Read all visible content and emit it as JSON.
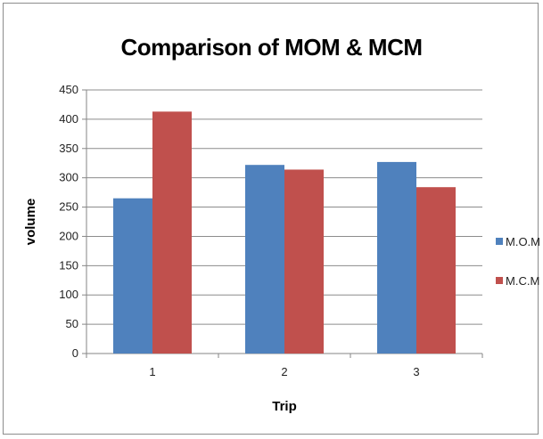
{
  "chart_data": {
    "type": "bar",
    "title": "Comparison of MOM & MCM",
    "xlabel": "Trip",
    "ylabel": "volume",
    "categories": [
      "1",
      "2",
      "3"
    ],
    "series": [
      {
        "name": "M.O.M",
        "color": "#4f81bd",
        "values": [
          265,
          322,
          327
        ]
      },
      {
        "name": "M.C.M",
        "color": "#c0504d",
        "values": [
          413,
          314,
          284
        ]
      }
    ],
    "ylim": [
      0,
      450
    ],
    "yticks": [
      0,
      50,
      100,
      150,
      200,
      250,
      300,
      350,
      400,
      450
    ],
    "grid": true,
    "legend": "right"
  }
}
